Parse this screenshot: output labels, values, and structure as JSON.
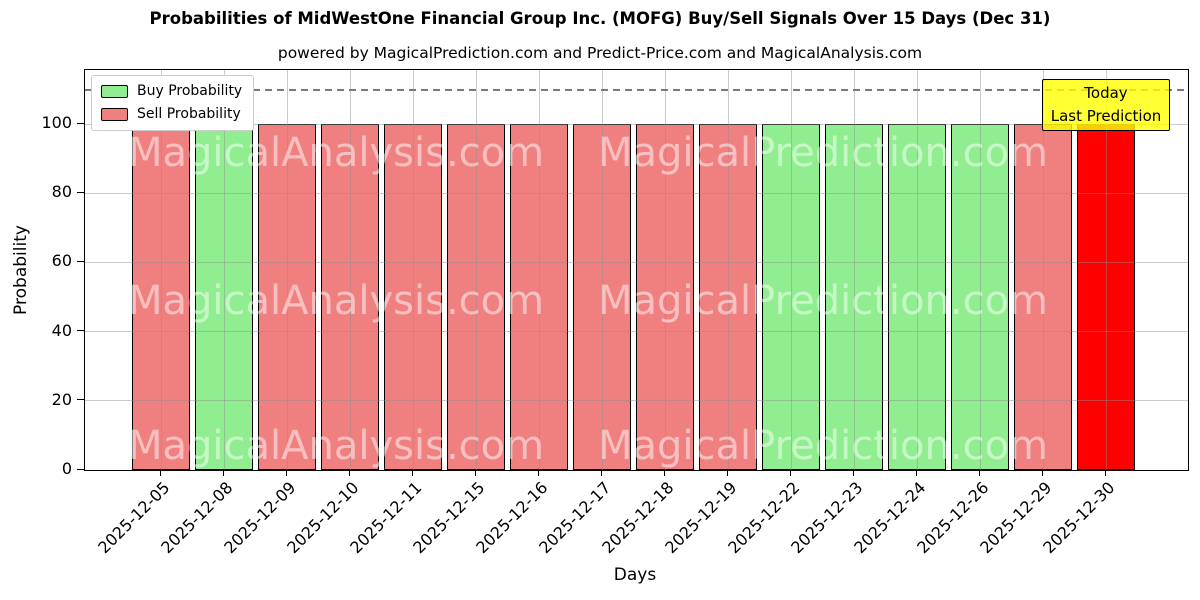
{
  "chart_data": {
    "type": "bar",
    "title": "Probabilities of MidWestOne Financial Group Inc. (MOFG) Buy/Sell Signals Over 15 Days (Dec 31)",
    "subtitle": "powered by MagicalPrediction.com and Predict-Price.com and MagicalAnalysis.com",
    "xlabel": "Days",
    "ylabel": "Probability",
    "ylim": [
      0,
      116
    ],
    "yticks": [
      0,
      20,
      40,
      60,
      80,
      100
    ],
    "grid": true,
    "legend_position": "upper left",
    "dashed_guide_y": 110,
    "categories": [
      "2025-12-05",
      "2025-12-08",
      "2025-12-09",
      "2025-12-10",
      "2025-12-11",
      "2025-12-15",
      "2025-12-16",
      "2025-12-17",
      "2025-12-18",
      "2025-12-19",
      "2025-12-22",
      "2025-12-23",
      "2025-12-24",
      "2025-12-26",
      "2025-12-29",
      "2025-12-30"
    ],
    "values": [
      100,
      100,
      100,
      100,
      100,
      100,
      100,
      100,
      100,
      100,
      100,
      100,
      100,
      100,
      100,
      100
    ],
    "signals": [
      "sell",
      "buy",
      "sell",
      "sell",
      "sell",
      "sell",
      "sell",
      "sell",
      "sell",
      "sell",
      "buy",
      "buy",
      "buy",
      "buy",
      "sell",
      "last_prediction"
    ],
    "series": [
      {
        "name": "Buy Probability",
        "color": "#90EE90",
        "values": [
          0,
          100,
          0,
          0,
          0,
          0,
          0,
          0,
          0,
          0,
          100,
          100,
          100,
          100,
          0,
          0
        ]
      },
      {
        "name": "Sell Probability",
        "color": "#F08080",
        "values": [
          100,
          0,
          100,
          100,
          100,
          100,
          100,
          100,
          100,
          100,
          0,
          0,
          0,
          0,
          100,
          0
        ]
      },
      {
        "name": "Last Prediction (today)",
        "color": "#FF0000",
        "values": [
          0,
          0,
          0,
          0,
          0,
          0,
          0,
          0,
          0,
          0,
          0,
          0,
          0,
          0,
          0,
          100
        ]
      }
    ]
  },
  "legend": {
    "items": [
      {
        "label": "Buy Probability",
        "color": "#90EE90"
      },
      {
        "label": "Sell Probability",
        "color": "#F08080"
      }
    ]
  },
  "annotation": {
    "lines": [
      "Today",
      "Last Prediction"
    ],
    "bg_color": "#FFFF00"
  },
  "watermark": {
    "left_text": "MagicalAnalysis.com",
    "right_text": "MagicalPrediction.com"
  },
  "colors": {
    "buy": "#90EE90",
    "sell": "#F08080",
    "last_prediction": "#FF0000",
    "grid": "#b0b0b0",
    "dashed_line": "#7a7a7a",
    "annotation_bg": "#FFFF00"
  }
}
